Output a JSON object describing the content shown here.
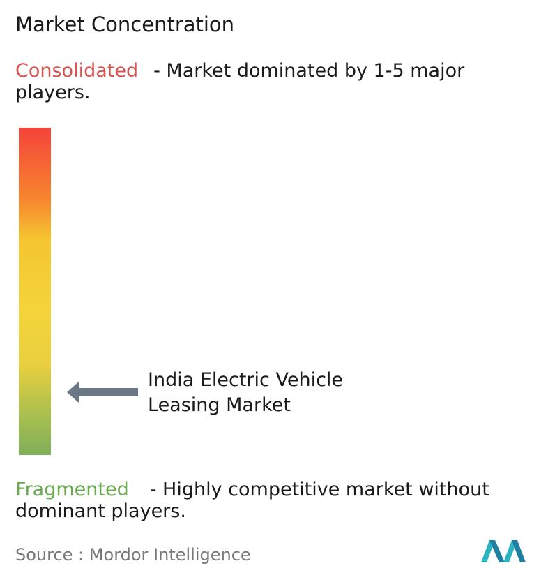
{
  "title": "Market Concentration",
  "consolidated": {
    "label": "Consolidated",
    "description": "- Market dominated by 1-5 major players."
  },
  "market": {
    "label": "India Electric Vehicle Leasing Market"
  },
  "fragmented": {
    "label": "Fragmented",
    "description": "- Highly competitive market without dominant players."
  },
  "source": {
    "label": "Source :",
    "name": "Mordor Intelligence"
  }
}
